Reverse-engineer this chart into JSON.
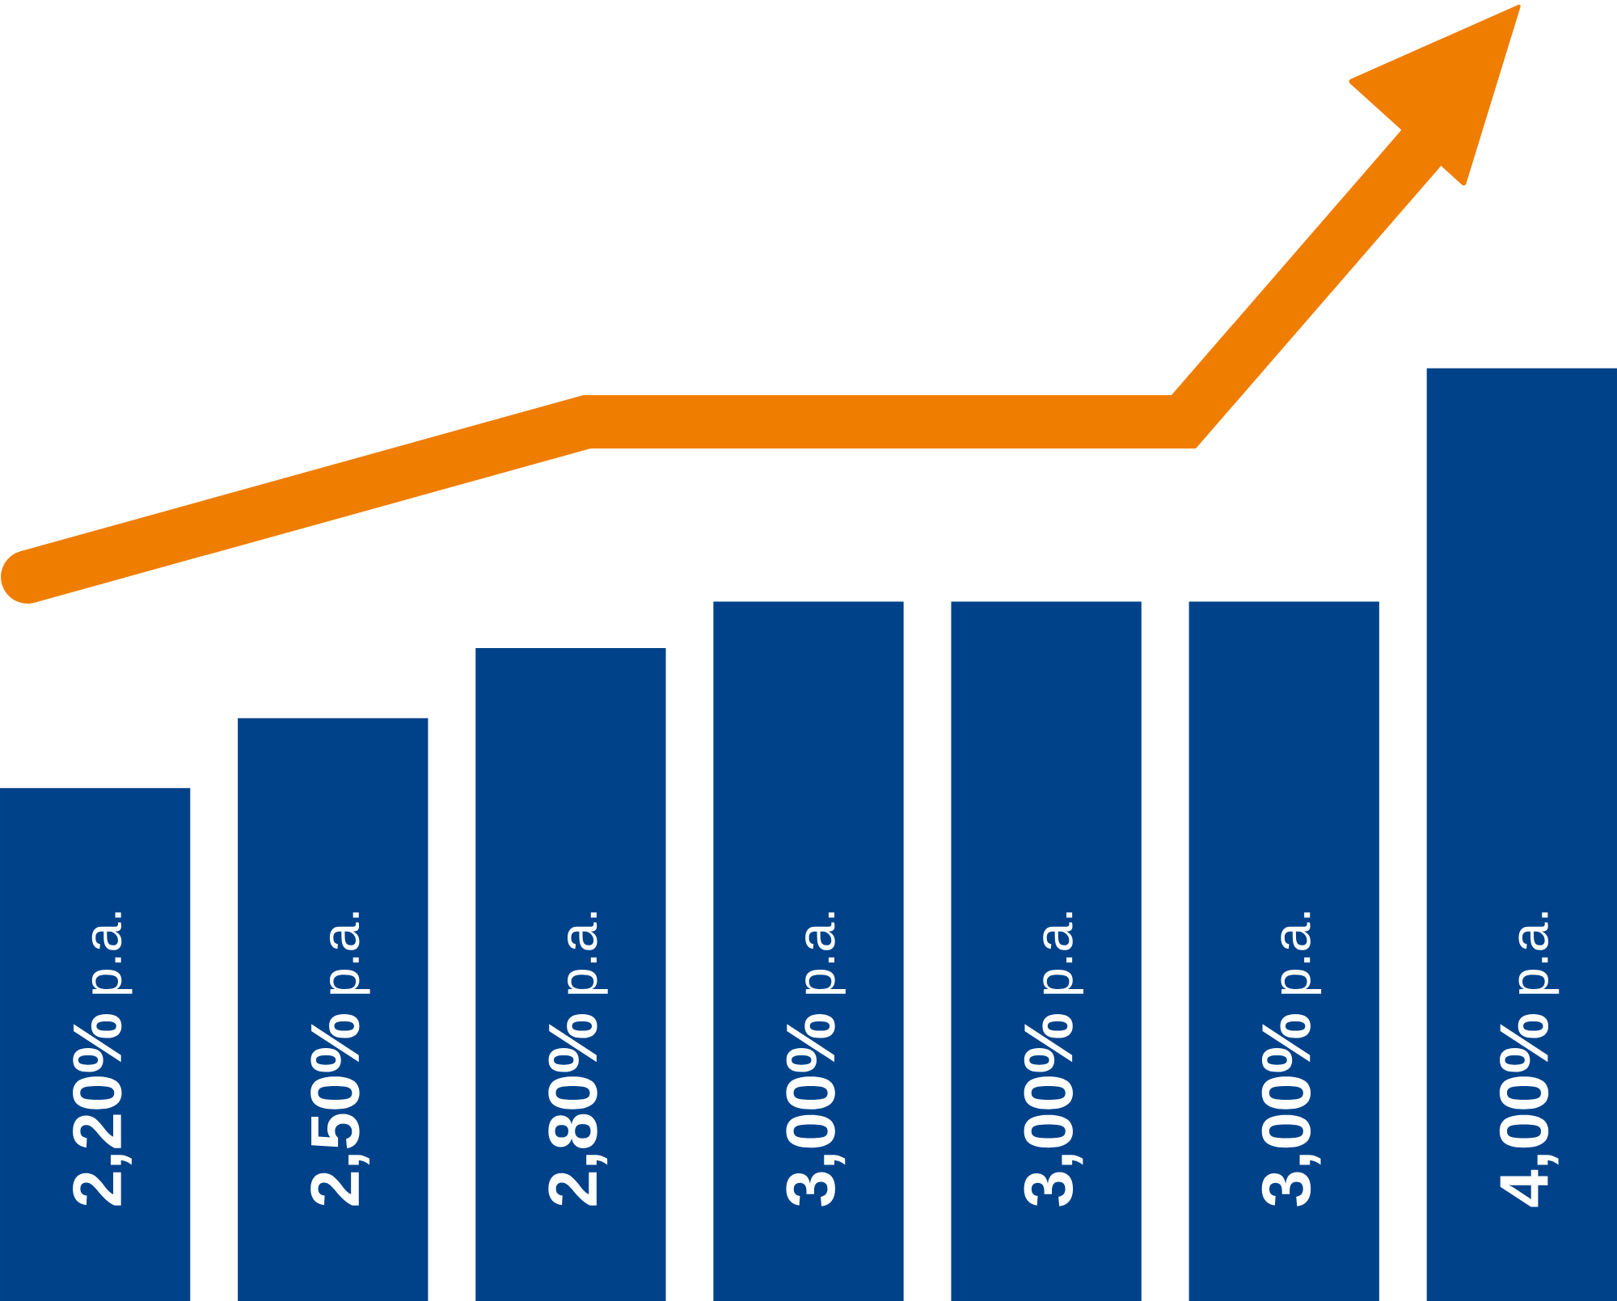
{
  "chart_data": {
    "type": "bar",
    "categories": [
      null,
      null,
      null,
      null,
      null,
      null,
      null
    ],
    "values": [
      2.2,
      2.5,
      2.8,
      3.0,
      3.0,
      3.0,
      4.0
    ],
    "value_labels": [
      "**2,20%** p.a.",
      "**2,50%** p.a.",
      "**2,80%** p.a.",
      "**3,00%** p.a.",
      "**3,00%** p.a.",
      "**3,00%** p.a.",
      "**4,00%** p.a."
    ],
    "color": "#00428a",
    "tick_labels": false
  }
}
